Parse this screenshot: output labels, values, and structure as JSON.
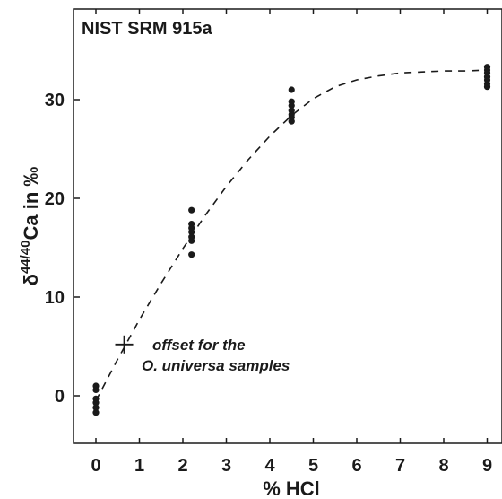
{
  "chart_data": {
    "type": "scatter",
    "title": "NIST SRM 915a",
    "xlabel": "% HCl",
    "ylabel_delta": "δ",
    "ylabel_superscript": "44/40",
    "ylabel_rest": "Ca in ‰",
    "xlim": [
      -0.5,
      9.2
    ],
    "ylim": [
      -5,
      39
    ],
    "x_ticks": [
      0,
      1,
      2,
      3,
      4,
      5,
      6,
      7,
      8,
      9
    ],
    "y_ticks": [
      0,
      10,
      20,
      30
    ],
    "grid": false,
    "legend": "none",
    "marker_color": "#1a1a1a",
    "points": [
      {
        "x": 0,
        "y": 1.0
      },
      {
        "x": 0,
        "y": 0.6
      },
      {
        "x": 0,
        "y": -0.3
      },
      {
        "x": 0,
        "y": -0.7
      },
      {
        "x": 0,
        "y": -1.2
      },
      {
        "x": 0,
        "y": -1.7
      },
      {
        "x": 2.2,
        "y": 18.8
      },
      {
        "x": 2.2,
        "y": 17.4
      },
      {
        "x": 2.2,
        "y": 17.0
      },
      {
        "x": 2.2,
        "y": 16.6
      },
      {
        "x": 2.2,
        "y": 16.1
      },
      {
        "x": 2.2,
        "y": 15.7
      },
      {
        "x": 2.2,
        "y": 14.3
      },
      {
        "x": 4.5,
        "y": 31.0
      },
      {
        "x": 4.5,
        "y": 29.8
      },
      {
        "x": 4.5,
        "y": 29.4
      },
      {
        "x": 4.5,
        "y": 28.9
      },
      {
        "x": 4.5,
        "y": 28.5
      },
      {
        "x": 4.5,
        "y": 28.2
      },
      {
        "x": 4.5,
        "y": 27.8
      },
      {
        "x": 9,
        "y": 33.3
      },
      {
        "x": 9,
        "y": 33.0
      },
      {
        "x": 9,
        "y": 32.7
      },
      {
        "x": 9,
        "y": 32.3
      },
      {
        "x": 9,
        "y": 32.0
      },
      {
        "x": 9,
        "y": 31.6
      },
      {
        "x": 9,
        "y": 31.3
      }
    ],
    "fit_curve": {
      "style": "dashed",
      "x": [
        0,
        0.5,
        1,
        1.5,
        2,
        2.5,
        3,
        3.5,
        4,
        4.5,
        5,
        5.5,
        6,
        6.5,
        7,
        7.5,
        8,
        8.5,
        9
      ],
      "y": [
        -0.5,
        3.7,
        7.7,
        11.4,
        14.9,
        18.2,
        21.2,
        23.9,
        26.3,
        28.4,
        30.1,
        31.3,
        32.0,
        32.4,
        32.7,
        32.8,
        32.9,
        32.9,
        33.0
      ]
    },
    "offset_marker": {
      "x": 0.65,
      "y": 5.2
    },
    "annotation_line1": "offset for the",
    "annotation_line2": "O. universa samples"
  }
}
